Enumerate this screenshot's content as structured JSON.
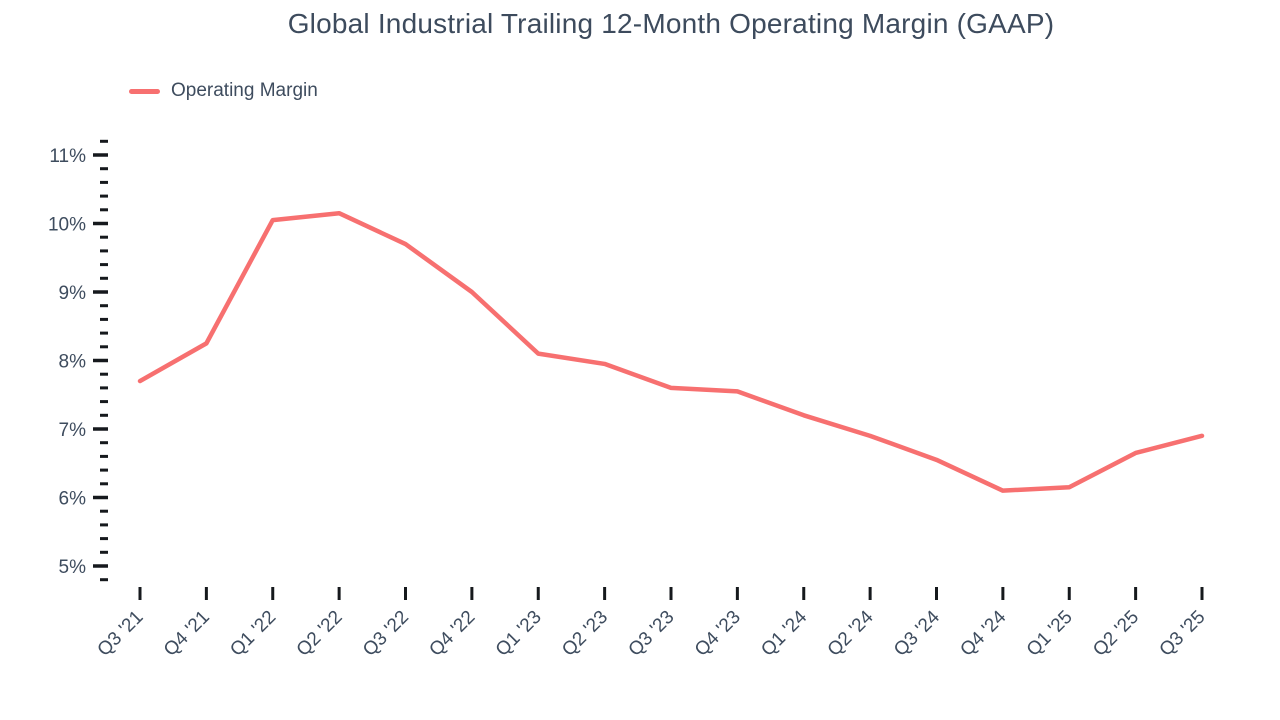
{
  "chart_data": {
    "type": "line",
    "title": "Global Industrial Trailing 12-Month Operating Margin (GAAP)",
    "categories": [
      "Q3 '21",
      "Q4 '21",
      "Q1 '22",
      "Q2 '22",
      "Q3 '22",
      "Q4 '22",
      "Q1 '23",
      "Q2 '23",
      "Q3 '23",
      "Q4 '23",
      "Q1 '24",
      "Q2 '24",
      "Q3 '24",
      "Q4 '24",
      "Q1 '25",
      "Q2 '25",
      "Q3 '25"
    ],
    "series": [
      {
        "name": "Operating Margin",
        "color": "#F77070",
        "values": [
          7.7,
          8.25,
          10.05,
          10.15,
          9.7,
          9.0,
          8.1,
          7.95,
          7.6,
          7.55,
          7.2,
          6.9,
          6.55,
          6.1,
          6.15,
          6.65,
          6.9
        ]
      }
    ],
    "xlabel": "",
    "ylabel": "",
    "ylim": [
      4.8,
      11.2
    ],
    "y_major_step": 1,
    "y_minor_step": 0.2,
    "y_tick_labels": [
      "5%",
      "6%",
      "7%",
      "8%",
      "9%",
      "10%",
      "11%"
    ],
    "y_tick_suffix": "%",
    "grid": false,
    "markers": false,
    "legend_position": "top-left",
    "axis": {
      "label_color": "#3E4C5E",
      "tick_color": "#16191D",
      "title_color": "#3D4B5D"
    }
  }
}
